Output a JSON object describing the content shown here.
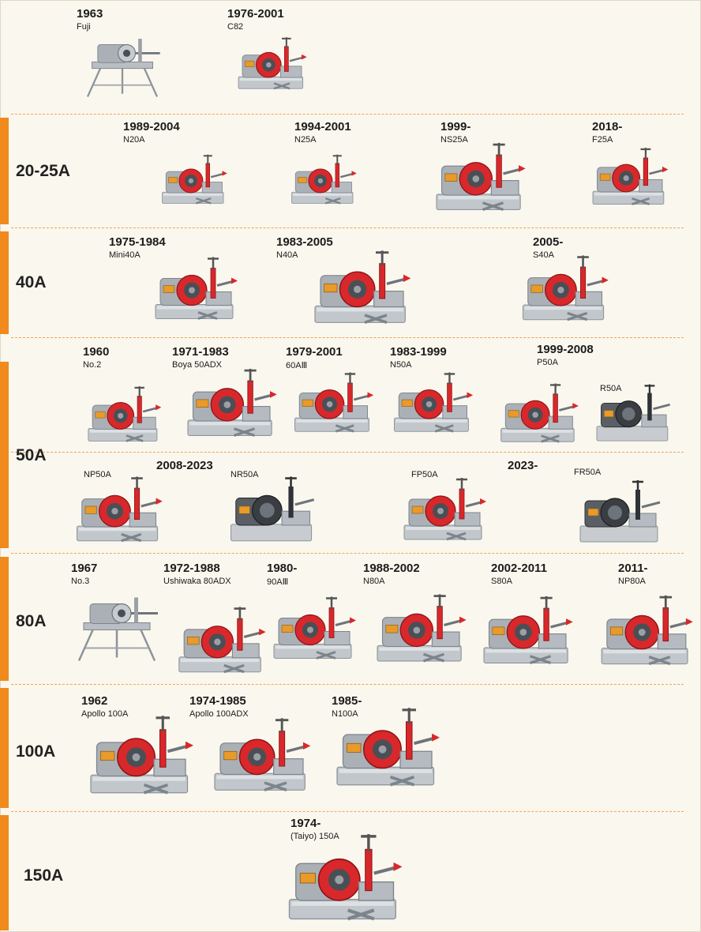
{
  "colors": {
    "accent_bar": "#f08a1c",
    "divider": "#f2a64f",
    "machine_red": "#d8282b",
    "machine_gray": "#b9bec4",
    "background": "#faf7ee"
  },
  "machine_icon": "pipe-threading-machine-image",
  "sections": [
    {
      "label": "",
      "items": [
        {
          "year": "1963",
          "model": "Fuji"
        },
        {
          "year": "1976-2001",
          "model": "C82"
        }
      ]
    },
    {
      "label": "20-25A",
      "items": [
        {
          "year": "1989-2004",
          "model": "N20A"
        },
        {
          "year": "1994-2001",
          "model": "N25A"
        },
        {
          "year": "1999-",
          "model": "NS25A"
        },
        {
          "year": "2018-",
          "model": "F25A"
        }
      ]
    },
    {
      "label": "40A",
      "items": [
        {
          "year": "1975-1984",
          "model": "Mini40A"
        },
        {
          "year": "1983-2005",
          "model": "N40A"
        },
        {
          "year": "2005-",
          "model": "S40A"
        }
      ]
    },
    {
      "label": "50A",
      "items": [
        {
          "year": "1960",
          "model": "No.2"
        },
        {
          "year": "1971-1983",
          "model": "Boya 50ADX"
        },
        {
          "year": "1979-2001",
          "model": "60AⅢ"
        },
        {
          "year": "1983-1999",
          "model": "N50A"
        },
        {
          "year": "1999-2008",
          "model": "P50A"
        },
        {
          "year": "",
          "model": "R50A"
        },
        {
          "year": "",
          "model": "NP50A"
        },
        {
          "year": "2008-2023",
          "model": "NR50A"
        },
        {
          "year": "",
          "model": "FP50A"
        },
        {
          "year": "2023-",
          "model": "FR50A"
        }
      ]
    },
    {
      "label": "80A",
      "items": [
        {
          "year": "1967",
          "model": "No.3"
        },
        {
          "year": "1972-1988",
          "model": "Ushiwaka 80ADX"
        },
        {
          "year": "1980-",
          "model": "90AⅢ"
        },
        {
          "year": "1988-2002",
          "model": "N80A"
        },
        {
          "year": "2002-2011",
          "model": "S80A"
        },
        {
          "year": "2011-",
          "model": "NP80A"
        }
      ]
    },
    {
      "label": "100A",
      "items": [
        {
          "year": "1962",
          "model": "Apollo 100A"
        },
        {
          "year": "1974-1985",
          "model": "Apollo 100ADX"
        },
        {
          "year": "1985-",
          "model": "N100A"
        }
      ]
    },
    {
      "label": "150A",
      "items": [
        {
          "year": "1974-",
          "model": "(Taiyo) 150A"
        }
      ]
    }
  ]
}
